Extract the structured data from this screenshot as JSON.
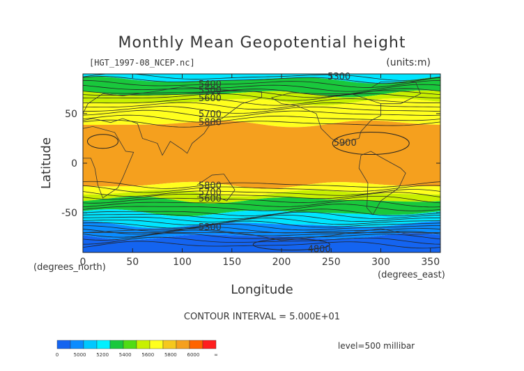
{
  "chart_data": {
    "type": "contour",
    "title": "Monthly Mean Geopotential height",
    "file_label": "[HGT_1997-08_NCEP.nc]",
    "units_label": "(units:m)",
    "xlabel": "Longitude",
    "ylabel": "Latitude",
    "x_unit_label": "(degrees_east)",
    "y_unit_label": "(degrees_north)",
    "xlim": [
      0,
      360
    ],
    "ylim": [
      -90,
      90
    ],
    "x_ticks": [
      0,
      50,
      100,
      150,
      200,
      250,
      300,
      350
    ],
    "y_ticks": [
      -50,
      0,
      50
    ],
    "contour_interval_text": "CONTOUR INTERVAL = 5.000E+01",
    "level_text": "level=500 millibar",
    "bands": [
      {
        "lat_from": 90,
        "lat_to": 84,
        "range": "5200-5400",
        "color": "#00e5ff"
      },
      {
        "lat_from": 84,
        "lat_to": 70,
        "range": "5400-5600",
        "color": "#19c83c"
      },
      {
        "lat_from": 70,
        "lat_to": 62,
        "range": "5600-5700",
        "color": "#c8f000"
      },
      {
        "lat_from": 62,
        "lat_to": 40,
        "range": "5700-5800",
        "color": "#ffff1e"
      },
      {
        "lat_from": 40,
        "lat_to": -22,
        "range": "5800-6000",
        "color": "#f5a01e"
      },
      {
        "lat_from": -22,
        "lat_to": -30,
        "range": "5700-5800",
        "color": "#ffff1e"
      },
      {
        "lat_from": -30,
        "lat_to": -37,
        "range": "5600-5700",
        "color": "#c8f000"
      },
      {
        "lat_from": -37,
        "lat_to": -50,
        "range": "5400-5600",
        "color": "#19c83c"
      },
      {
        "lat_from": -50,
        "lat_to": -62,
        "range": "5200-5400",
        "color": "#00e5ff"
      },
      {
        "lat_from": -62,
        "lat_to": -74,
        "range": "5000-5200",
        "color": "#0a8cff"
      },
      {
        "lat_from": -74,
        "lat_to": -90,
        "range": "0-5000",
        "color": "#1464f0"
      }
    ],
    "contour_labels": [
      {
        "text": "5300",
        "lon": 258,
        "lat": 88
      },
      {
        "text": "5400",
        "lon": 128,
        "lat": 80
      },
      {
        "text": "5500",
        "lon": 128,
        "lat": 74
      },
      {
        "text": "5600",
        "lon": 128,
        "lat": 66
      },
      {
        "text": "5700",
        "lon": 128,
        "lat": 50
      },
      {
        "text": "5800",
        "lon": 128,
        "lat": 42
      },
      {
        "text": "5900",
        "lon": 264,
        "lat": 21
      },
      {
        "text": "5800",
        "lon": 128,
        "lat": -22
      },
      {
        "text": "5700",
        "lon": 128,
        "lat": -29
      },
      {
        "text": "5600",
        "lon": 128,
        "lat": -35
      },
      {
        "text": "5300",
        "lon": 128,
        "lat": -64
      },
      {
        "text": "4800",
        "lon": 238,
        "lat": -86
      }
    ],
    "colorbar": {
      "labels": [
        "0",
        "5000",
        "5200",
        "5400",
        "5600",
        "5800",
        "6000",
        "∞"
      ],
      "colors": [
        "#1464f0",
        "#0a8cff",
        "#00c8ff",
        "#00f0ff",
        "#19c83c",
        "#50dc14",
        "#c8f000",
        "#ffff1e",
        "#f5c81e",
        "#f5a01e",
        "#ff6400",
        "#ff1e1e"
      ]
    }
  }
}
